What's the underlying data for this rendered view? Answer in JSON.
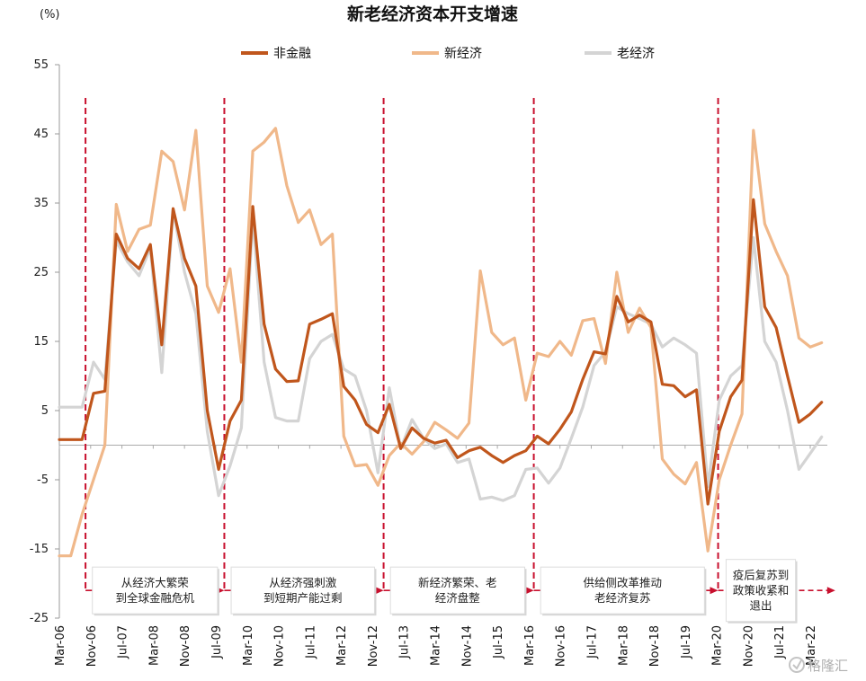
{
  "chart_data": {
    "type": "line",
    "title": "新老经济资本开支增速",
    "unit": "(%)",
    "ylim": [
      -25,
      55
    ],
    "yticks": [
      55,
      45,
      35,
      25,
      15,
      5,
      -5,
      -15,
      -25
    ],
    "grid": false,
    "legend_position": "top",
    "x_tick_labels": [
      "Mar-06",
      "Nov-06",
      "Jul-07",
      "Mar-08",
      "Nov-08",
      "Jul-09",
      "Mar-10",
      "Nov-10",
      "Jul-11",
      "Mar-12",
      "Nov-12",
      "Jul-13",
      "Mar-14",
      "Nov-14",
      "Jul-15",
      "Mar-16",
      "Nov-16",
      "Jul-17",
      "Mar-18",
      "Nov-18",
      "Jul-19",
      "Mar-20",
      "Nov-20",
      "Jul-21",
      "Mar-22"
    ],
    "series": [
      {
        "name": "非金融",
        "color": "#c0561c",
        "points": [
          [
            0,
            0.8
          ],
          [
            2,
            0.8
          ],
          [
            3,
            7.5
          ],
          [
            4,
            7.8
          ],
          [
            5,
            30.5
          ],
          [
            6,
            27
          ],
          [
            7,
            25.5
          ],
          [
            8,
            29
          ],
          [
            9,
            14.5
          ],
          [
            10,
            34.2
          ],
          [
            11,
            27
          ],
          [
            12,
            23
          ],
          [
            13,
            5
          ],
          [
            14,
            -3.5
          ],
          [
            15,
            3.5
          ],
          [
            16,
            6.5
          ],
          [
            17,
            34.5
          ],
          [
            18,
            17.5
          ],
          [
            19,
            11
          ],
          [
            20,
            9.2
          ],
          [
            21,
            9.3
          ],
          [
            22,
            17.5
          ],
          [
            23,
            18.2
          ],
          [
            24,
            19
          ],
          [
            25,
            8.5
          ],
          [
            26,
            6.5
          ],
          [
            27,
            3
          ],
          [
            28,
            1.8
          ],
          [
            29,
            5.9
          ],
          [
            30,
            -0.5
          ],
          [
            31,
            2.5
          ],
          [
            32,
            1
          ],
          [
            33,
            0.3
          ],
          [
            34,
            0.7
          ],
          [
            35,
            -1.8
          ],
          [
            36,
            -0.8
          ],
          [
            37,
            -0.3
          ],
          [
            38,
            -1.5
          ],
          [
            39,
            -2.5
          ],
          [
            40,
            -1.5
          ],
          [
            41,
            -0.8
          ],
          [
            42,
            1.3
          ],
          [
            43,
            0.2
          ],
          [
            44,
            2.3
          ],
          [
            45,
            4.8
          ],
          [
            46,
            9.5
          ],
          [
            47,
            13.5
          ],
          [
            48,
            13.2
          ],
          [
            49,
            21.5
          ],
          [
            50,
            17.8
          ],
          [
            51,
            18.8
          ],
          [
            52,
            17.8
          ],
          [
            53,
            8.8
          ],
          [
            54,
            8.6
          ],
          [
            55,
            7
          ],
          [
            56,
            8
          ],
          [
            57,
            -8.5
          ],
          [
            58,
            2
          ],
          [
            59,
            7
          ],
          [
            60,
            9.4
          ],
          [
            61,
            35.5
          ],
          [
            62,
            20
          ],
          [
            63,
            17
          ],
          [
            64,
            10
          ],
          [
            65,
            3.3
          ],
          [
            66,
            4.5
          ],
          [
            67,
            6.2
          ]
        ]
      },
      {
        "name": "新经济",
        "color": "#f0b88a",
        "points": [
          [
            0,
            -16
          ],
          [
            1,
            -16
          ],
          [
            2,
            -10
          ],
          [
            4,
            0
          ],
          [
            5,
            34.8
          ],
          [
            6,
            28
          ],
          [
            7,
            31.2
          ],
          [
            8,
            31.8
          ],
          [
            9,
            42.5
          ],
          [
            10,
            41
          ],
          [
            11,
            34
          ],
          [
            12,
            45.5
          ],
          [
            13,
            23
          ],
          [
            14,
            19.2
          ],
          [
            15,
            25.5
          ],
          [
            16,
            12
          ],
          [
            17,
            42.5
          ],
          [
            18,
            43.8
          ],
          [
            19,
            45.8
          ],
          [
            20,
            37.5
          ],
          [
            21,
            32.2
          ],
          [
            22,
            34
          ],
          [
            23,
            29
          ],
          [
            24,
            30.5
          ],
          [
            25,
            1.3
          ],
          [
            26,
            -3
          ],
          [
            27,
            -2.8
          ],
          [
            28,
            -5.8
          ],
          [
            29,
            -1.5
          ],
          [
            30,
            0.3
          ],
          [
            31,
            -1.3
          ],
          [
            32,
            0.5
          ],
          [
            33,
            3.3
          ],
          [
            34,
            2.2
          ],
          [
            35,
            1
          ],
          [
            36,
            3.2
          ],
          [
            37,
            25.2
          ],
          [
            38,
            16.3
          ],
          [
            39,
            14.5
          ],
          [
            40,
            15.5
          ],
          [
            41,
            6.5
          ],
          [
            42,
            13.3
          ],
          [
            43,
            12.8
          ],
          [
            44,
            15
          ],
          [
            45,
            13
          ],
          [
            46,
            18
          ],
          [
            47,
            18.3
          ],
          [
            48,
            11.8
          ],
          [
            49,
            25
          ],
          [
            50,
            16.3
          ],
          [
            51,
            19.8
          ],
          [
            52,
            17
          ],
          [
            53,
            -2
          ],
          [
            54,
            -4.2
          ],
          [
            55,
            -5.6
          ],
          [
            56,
            -2.5
          ],
          [
            57,
            -15.3
          ],
          [
            58,
            -5
          ],
          [
            59,
            0
          ],
          [
            60,
            4.5
          ],
          [
            61,
            45.5
          ],
          [
            62,
            32
          ],
          [
            63,
            28
          ],
          [
            64,
            24.5
          ],
          [
            65,
            15.5
          ],
          [
            66,
            14.2
          ],
          [
            67,
            14.8
          ]
        ]
      },
      {
        "name": "老经济",
        "color": "#d4d4d4",
        "points": [
          [
            0,
            5.5
          ],
          [
            2,
            5.5
          ],
          [
            3,
            12
          ],
          [
            4,
            9.5
          ],
          [
            5,
            29.5
          ],
          [
            6,
            26.5
          ],
          [
            7,
            24.5
          ],
          [
            8,
            28.5
          ],
          [
            9,
            10.5
          ],
          [
            10,
            34
          ],
          [
            11,
            25
          ],
          [
            12,
            19
          ],
          [
            13,
            2
          ],
          [
            14,
            -7.3
          ],
          [
            15,
            -3
          ],
          [
            16,
            2.5
          ],
          [
            17,
            33
          ],
          [
            18,
            12
          ],
          [
            19,
            4
          ],
          [
            20,
            3.5
          ],
          [
            21,
            3.5
          ],
          [
            22,
            12.5
          ],
          [
            23,
            15
          ],
          [
            24,
            16
          ],
          [
            25,
            11
          ],
          [
            26,
            10
          ],
          [
            27,
            5
          ],
          [
            28,
            -4
          ],
          [
            29,
            8.3
          ],
          [
            30,
            -0.5
          ],
          [
            31,
            3.7
          ],
          [
            32,
            1
          ],
          [
            33,
            -0.5
          ],
          [
            34,
            0.2
          ],
          [
            35,
            -2.5
          ],
          [
            36,
            -2
          ],
          [
            37,
            -7.8
          ],
          [
            38,
            -7.5
          ],
          [
            39,
            -8
          ],
          [
            40,
            -7.3
          ],
          [
            41,
            -3.5
          ],
          [
            42,
            -3.3
          ],
          [
            43,
            -5.5
          ],
          [
            44,
            -3.3
          ],
          [
            45,
            1
          ],
          [
            46,
            5.5
          ],
          [
            47,
            11.5
          ],
          [
            48,
            13.5
          ],
          [
            49,
            20
          ],
          [
            50,
            19
          ],
          [
            51,
            18.3
          ],
          [
            52,
            17.5
          ],
          [
            53,
            14.2
          ],
          [
            54,
            15.5
          ],
          [
            55,
            14.5
          ],
          [
            56,
            13.3
          ],
          [
            57,
            -6
          ],
          [
            58,
            6.5
          ],
          [
            59,
            10
          ],
          [
            60,
            11.5
          ],
          [
            61,
            30
          ],
          [
            62,
            15
          ],
          [
            63,
            12
          ],
          [
            64,
            5
          ],
          [
            65,
            -3.5
          ],
          [
            66,
            -1.2
          ],
          [
            67,
            1.2
          ]
        ]
      }
    ],
    "annotations": [
      {
        "lines": [
          "从经济大繁荣",
          "到全球金融危机"
        ],
        "from": 2.3,
        "to": 14.5,
        "box": [
          2.9,
          13.9
        ]
      },
      {
        "lines": [
          "从经济强刺激",
          "到短期产能过剩"
        ],
        "from": 14.5,
        "to": 28.5,
        "box": [
          15.1,
          27.7
        ]
      },
      {
        "lines": [
          "新经济繁荣、老",
          "经济盘整"
        ],
        "from": 28.5,
        "to": 41.7,
        "box": [
          29.1,
          40.9
        ]
      },
      {
        "lines": [
          "供给侧改革推动",
          "老经济复苏"
        ],
        "from": 41.7,
        "to": 57.9,
        "box": [
          42.3,
          56.7
        ]
      },
      {
        "lines": [
          "疫后复苏到",
          "政策收紧和",
          "退出"
        ],
        "from": 57.9,
        "to": 68.2,
        "box": [
          58.6,
          64.7
        ]
      }
    ],
    "dividers_x": [
      2.3,
      14.5,
      28.5,
      41.7,
      57.9
    ],
    "watermark": "格隆汇"
  }
}
